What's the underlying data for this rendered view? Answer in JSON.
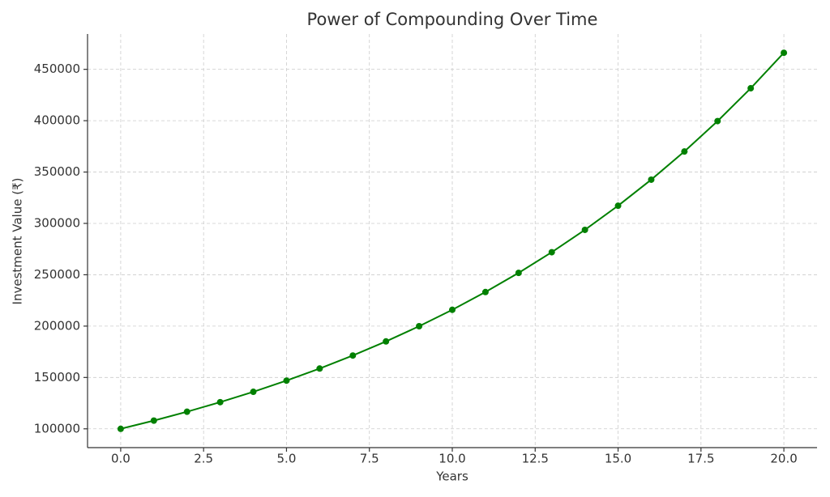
{
  "chart_data": {
    "type": "line",
    "title": "Power of Compounding Over Time",
    "x_label": "Years",
    "y_label": "Investment Value (₹)",
    "x": [
      0,
      1,
      2,
      3,
      4,
      5,
      6,
      7,
      8,
      9,
      10,
      11,
      12,
      13,
      14,
      15,
      16,
      17,
      18,
      19,
      20
    ],
    "series": [
      {
        "name": "Investment Value",
        "color": "#008000",
        "values": [
          100000,
          108000,
          116640,
          125971,
          136049,
          146933,
          158687,
          171382,
          185093,
          199900,
          215892,
          233164,
          251817,
          271962,
          293719,
          317217,
          342594,
          370002,
          399602,
          431570,
          466096
        ]
      }
    ],
    "xlim": [
      -1,
      21
    ],
    "ylim": [
      81695,
      484401
    ],
    "xticks": [
      {
        "value": 0,
        "label": "0.0"
      },
      {
        "value": 2.5,
        "label": "2.5"
      },
      {
        "value": 5,
        "label": "5.0"
      },
      {
        "value": 7.5,
        "label": "7.5"
      },
      {
        "value": 10,
        "label": "10.0"
      },
      {
        "value": 12.5,
        "label": "12.5"
      },
      {
        "value": 15,
        "label": "15.0"
      },
      {
        "value": 17.5,
        "label": "17.5"
      },
      {
        "value": 20,
        "label": "20.0"
      }
    ],
    "yticks": [
      100000,
      150000,
      200000,
      250000,
      300000,
      350000,
      400000,
      450000
    ],
    "grid": true,
    "markers": true
  }
}
